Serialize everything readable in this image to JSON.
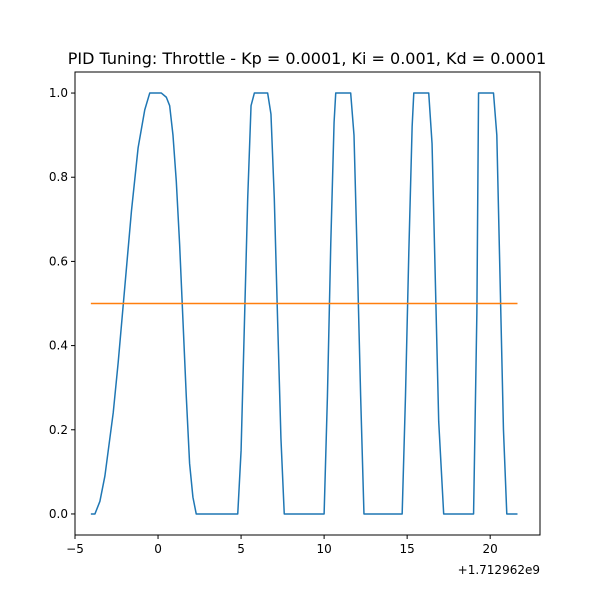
{
  "chart_data": {
    "type": "line",
    "title": "PID Tuning: Throttle - Kp = 0.0001, Ki = 0.001, Kd = 0.0001",
    "xlabel": "",
    "ylabel": "",
    "x_offset_label": "+1.712962e9",
    "xlim": [
      -5,
      23
    ],
    "ylim": [
      -0.05,
      1.05
    ],
    "x_ticks": [
      -5,
      0,
      5,
      10,
      15,
      20
    ],
    "x_tick_labels": [
      "−5",
      "0",
      "5",
      "10",
      "15",
      "20"
    ],
    "y_ticks": [
      0.0,
      0.2,
      0.4,
      0.6,
      0.8,
      1.0
    ],
    "y_tick_labels": [
      "0.0",
      "0.2",
      "0.4",
      "0.6",
      "0.8",
      "1.0"
    ],
    "grid": false,
    "legend": "none",
    "series": [
      {
        "color": "#1f77b4",
        "x": [
          -4.0,
          -3.8,
          -3.5,
          -3.2,
          -3.0,
          -2.7,
          -2.4,
          -2.0,
          -1.6,
          -1.2,
          -0.8,
          -0.5,
          -0.3,
          0.0,
          0.2,
          0.5,
          0.7,
          0.9,
          1.1,
          1.3,
          1.5,
          1.7,
          1.9,
          2.1,
          2.3,
          2.4,
          2.5,
          4.8,
          5.0,
          5.2,
          5.4,
          5.6,
          5.8,
          6.6,
          6.8,
          7.0,
          7.2,
          7.4,
          7.6,
          7.8,
          8.0,
          10.0,
          10.2,
          10.4,
          10.6,
          10.7,
          11.6,
          11.8,
          12.0,
          12.2,
          12.4,
          12.8,
          14.7,
          14.9,
          15.1,
          15.3,
          15.4,
          16.3,
          16.5,
          16.7,
          16.9,
          17.2,
          19.0,
          19.2,
          19.3,
          20.2,
          20.4,
          20.6,
          20.8,
          21.0,
          21.2,
          21.6
        ],
        "y": [
          0.0,
          0.0,
          0.03,
          0.09,
          0.15,
          0.24,
          0.36,
          0.54,
          0.72,
          0.87,
          0.96,
          1.0,
          1.0,
          1.0,
          1.0,
          0.99,
          0.97,
          0.9,
          0.79,
          0.64,
          0.46,
          0.28,
          0.12,
          0.04,
          0.0,
          0.0,
          0.0,
          0.0,
          0.15,
          0.45,
          0.75,
          0.97,
          1.0,
          1.0,
          0.95,
          0.75,
          0.46,
          0.18,
          0.0,
          0.0,
          0.0,
          0.0,
          0.28,
          0.64,
          0.93,
          1.0,
          1.0,
          0.9,
          0.6,
          0.28,
          0.0,
          0.0,
          0.0,
          0.28,
          0.62,
          0.92,
          1.0,
          1.0,
          0.88,
          0.55,
          0.22,
          0.0,
          0.0,
          0.48,
          1.0,
          1.0,
          0.9,
          0.55,
          0.2,
          0.0,
          0.0,
          0.0
        ]
      },
      {
        "color": "#ff7f0e",
        "x": [
          -4.0,
          21.6
        ],
        "y": [
          0.5,
          0.5
        ]
      }
    ]
  }
}
